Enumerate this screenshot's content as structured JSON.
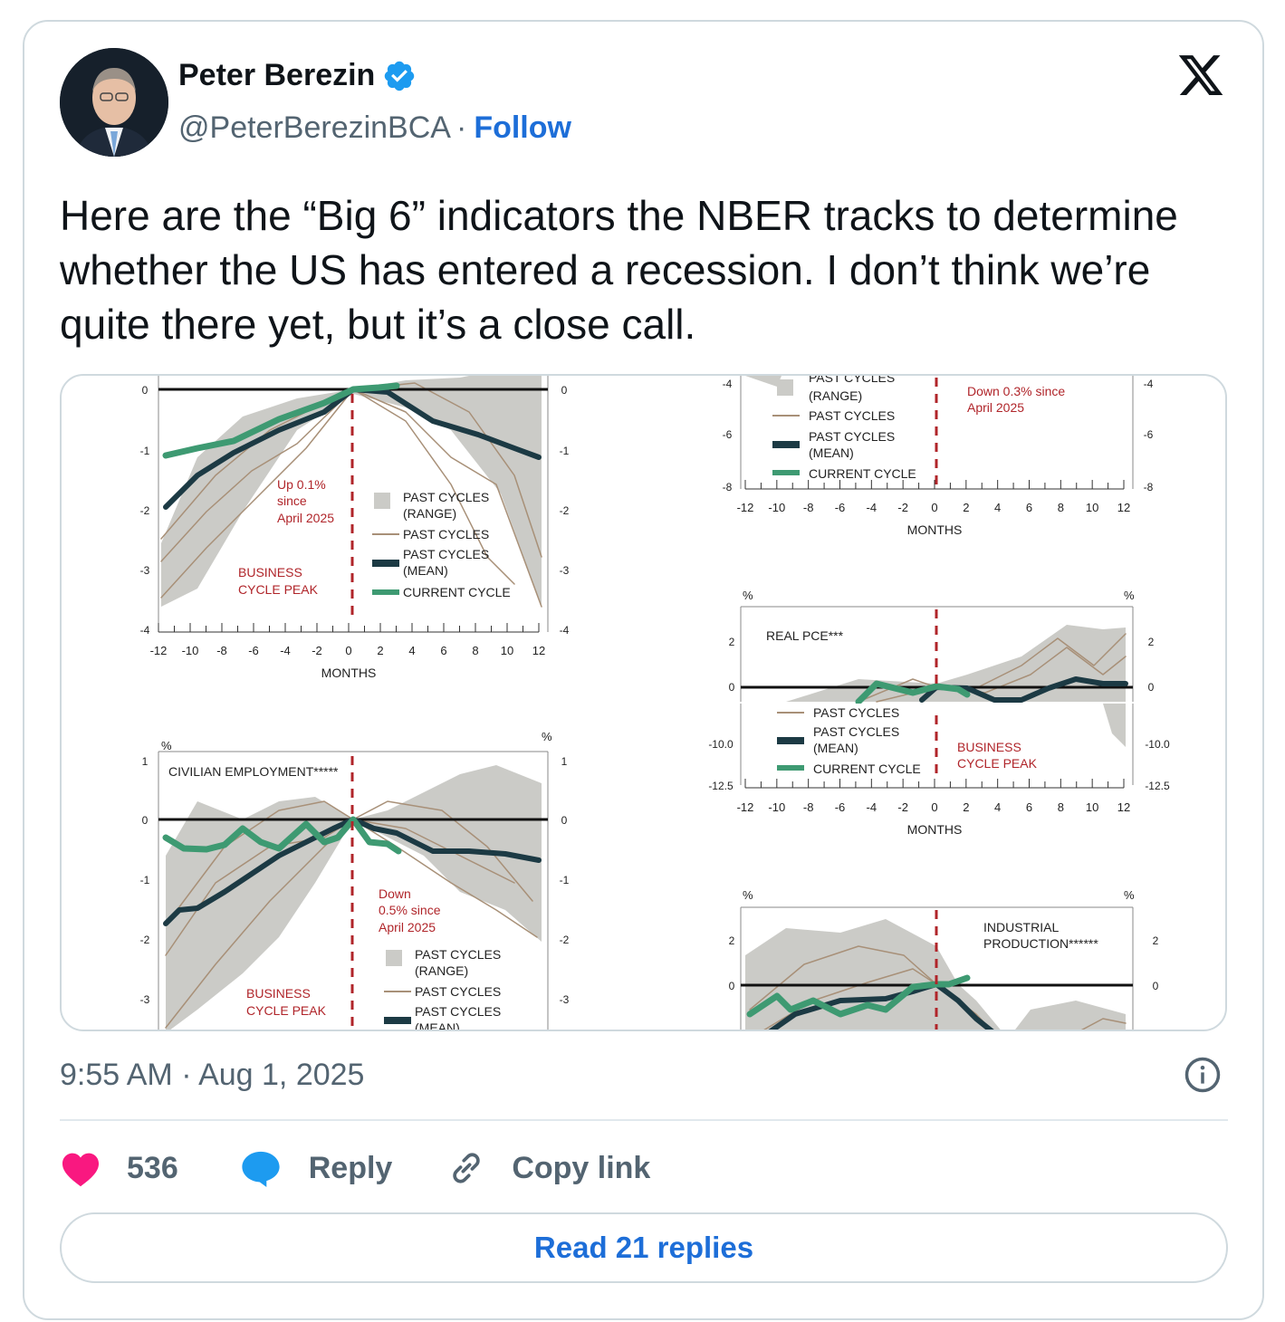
{
  "author": {
    "name": "Peter Berezin",
    "handle": "@PeterBerezinBCA",
    "separator": "·",
    "follow_label": "Follow"
  },
  "tweet": {
    "text": "Here are the “Big 6” indicators the NBER tracks to determine whether the US has entered a recession. I don’t think we’re quite there yet, but it’s a close call.",
    "timestamp": "9:55 AM · Aug 1, 2025"
  },
  "actions": {
    "like_count": "536",
    "reply_label": "Reply",
    "copy_label": "Copy link",
    "read_replies_label": "Read 21 replies"
  },
  "colors": {
    "accent": "#1d6ed8",
    "like": "#f91880",
    "reply_icon": "#1d9bf0",
    "mean_line": "#1c3a44",
    "current_line": "#3e9a72",
    "past_line": "#a89078",
    "range_fill": "#cbcbc7",
    "peak_line": "#b0252a"
  },
  "media": {
    "legend": {
      "range": "PAST CYCLES",
      "range2": "(RANGE)",
      "past": "PAST CYCLES",
      "mean": "PAST CYCLES",
      "mean2": "(MEAN)",
      "current": "CURRENT CYCLE"
    },
    "months_label": "MONTHS",
    "pct": "%",
    "x_ticks": [
      "-12",
      "-10",
      "-8",
      "-6",
      "-4",
      "-2",
      "0",
      "2",
      "4",
      "6",
      "8",
      "10",
      "12"
    ],
    "chart1": {
      "y_ticks": [
        "0",
        "-1",
        "-2",
        "-3",
        "-4"
      ],
      "note": [
        "Up 0.1%",
        "since",
        "April 2025"
      ],
      "peak": [
        "BUSINESS",
        "CYCLE PEAK"
      ]
    },
    "chart2": {
      "y_ticks": [
        "-4",
        "-6",
        "-8"
      ],
      "note": [
        "Down 0.3% since",
        "April 2025"
      ]
    },
    "chart3": {
      "title": "CIVILIAN EMPLOYMENT*****",
      "y_ticks": [
        "1",
        "0",
        "-1",
        "-2",
        "-3"
      ],
      "note": [
        "Down",
        "0.5% since",
        "April 2025"
      ],
      "peak": [
        "BUSINESS",
        "CYCLE PEAK"
      ]
    },
    "chart4": {
      "title": "REAL PCE***",
      "y_ticks": [
        "2",
        "0"
      ],
      "y_ticks_b": [
        "-10.0",
        "-12.5"
      ],
      "peak": [
        "BUSINESS",
        "CYCLE PEAK"
      ]
    },
    "chart5": {
      "title": [
        "INDUSTRIAL",
        "PRODUCTION******"
      ],
      "y_ticks": [
        "2",
        "0"
      ]
    }
  }
}
